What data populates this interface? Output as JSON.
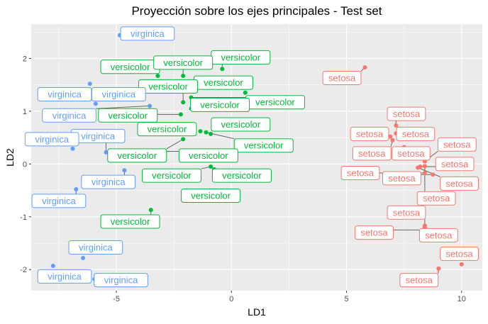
{
  "chart_data": {
    "type": "scatter",
    "title": "Proyección sobre los ejes principales - Test set",
    "xlabel": "LD1",
    "ylabel": "LD2",
    "xlim": [
      -8.7,
      10.9
    ],
    "ylim": [
      -2.4,
      2.65
    ],
    "xticks": [
      -5,
      0,
      5,
      10
    ],
    "yticks": [
      -2,
      -1,
      0,
      1,
      2
    ],
    "grid": true,
    "background": "#EBEBEB",
    "series": [
      {
        "name": "setosa",
        "color": "#F8766D",
        "points": [
          {
            "x": 5.8,
            "y": 1.83,
            "label": "setosa",
            "lx": 4.8,
            "ly": 1.63
          },
          {
            "x": 7.15,
            "y": 0.73,
            "label": "setosa",
            "lx": 7.6,
            "ly": 0.95
          },
          {
            "x": 7.15,
            "y": 0.58,
            "label": "setosa",
            "lx": 8.0,
            "ly": 0.57
          },
          {
            "x": 6.9,
            "y": 0.52,
            "label": "setosa",
            "lx": 6.0,
            "ly": 0.57
          },
          {
            "x": 7.0,
            "y": 0.45,
            "label": "setosa",
            "lx": 6.1,
            "ly": 0.2
          },
          {
            "x": 7.5,
            "y": 0.32,
            "label": "setosa",
            "lx": 7.8,
            "ly": 0.2
          },
          {
            "x": 8.4,
            "y": 0.05,
            "label": "setosa",
            "lx": 9.8,
            "ly": 0.37
          },
          {
            "x": 8.2,
            "y": -0.05,
            "label": "setosa",
            "lx": 9.7,
            "ly": 0.0
          },
          {
            "x": 8.4,
            "y": -0.17,
            "label": "setosa",
            "lx": 5.6,
            "ly": -0.17
          },
          {
            "x": 8.75,
            "y": -0.2,
            "label": "setosa",
            "lx": 7.4,
            "ly": -0.27
          },
          {
            "x": 8.1,
            "y": -0.07,
            "label": "setosa",
            "lx": 9.9,
            "ly": -0.37
          },
          {
            "x": 8.4,
            "y": -0.04,
            "label": "setosa",
            "lx": 8.9,
            "ly": -0.65
          },
          {
            "x": 8.4,
            "y": -1.17,
            "label": "setosa",
            "lx": 7.6,
            "ly": -0.92
          },
          {
            "x": 8.5,
            "y": -1.25,
            "label": "setosa",
            "lx": 6.2,
            "ly": -1.3
          },
          {
            "x": 8.4,
            "y": -1.2,
            "label": "setosa",
            "lx": 9.0,
            "ly": -1.35
          },
          {
            "x": 10.0,
            "y": -1.9,
            "label": "setosa",
            "lx": 9.9,
            "ly": -1.7
          },
          {
            "x": 9.0,
            "y": -1.98,
            "label": "setosa",
            "lx": 8.15,
            "ly": -2.2
          }
        ]
      },
      {
        "name": "versicolor",
        "color": "#00BA38",
        "points": [
          {
            "x": -0.4,
            "y": 1.8,
            "label": "versicolor",
            "lx": 0.4,
            "ly": 2.02
          },
          {
            "x": -3.2,
            "y": 1.67,
            "label": "versicolor",
            "lx": -4.4,
            "ly": 1.84
          },
          {
            "x": -2.1,
            "y": 1.67,
            "label": "versicolor",
            "lx": -2.1,
            "ly": 1.92
          },
          {
            "x": 0.6,
            "y": 1.35,
            "label": "versicolor",
            "lx": -0.35,
            "ly": 1.54
          },
          {
            "x": -2.1,
            "y": 1.17,
            "label": "versicolor",
            "lx": -2.75,
            "ly": 1.47
          },
          {
            "x": -1.75,
            "y": 1.26,
            "label": "versicolor",
            "lx": 1.9,
            "ly": 1.17
          },
          {
            "x": -1.75,
            "y": 1.05,
            "label": "versicolor",
            "lx": -0.5,
            "ly": 1.12
          },
          {
            "x": -2.2,
            "y": 0.94,
            "label": "versicolor",
            "lx": -4.5,
            "ly": 0.92
          },
          {
            "x": -1.35,
            "y": 0.62,
            "label": "versicolor",
            "lx": -2.8,
            "ly": 0.66
          },
          {
            "x": -0.9,
            "y": 0.57,
            "label": "versicolor",
            "lx": 0.4,
            "ly": 0.75
          },
          {
            "x": -1.1,
            "y": 0.6,
            "label": "versicolor",
            "lx": 1.4,
            "ly": 0.35
          },
          {
            "x": -2.1,
            "y": 0.47,
            "label": "versicolor",
            "lx": -4.1,
            "ly": 0.16
          },
          {
            "x": -2.9,
            "y": 0.24,
            "label": "versicolor",
            "lx": -1.0,
            "ly": 0.16
          },
          {
            "x": -0.9,
            "y": -0.05,
            "label": "versicolor",
            "lx": -2.6,
            "ly": -0.22
          },
          {
            "x": -0.75,
            "y": -0.1,
            "label": "versicolor",
            "lx": 0.45,
            "ly": -0.22
          },
          {
            "x": -2.1,
            "y": -0.68,
            "label": "versicolor",
            "lx": -0.9,
            "ly": -0.6
          },
          {
            "x": -3.5,
            "y": -0.87,
            "label": "versicolor",
            "lx": -4.4,
            "ly": -1.09
          }
        ]
      },
      {
        "name": "virginica",
        "color": "#619CFF",
        "points": [
          {
            "x": -4.85,
            "y": 2.44,
            "label": "virginica",
            "lx": -3.65,
            "ly": 2.47
          },
          {
            "x": -6.15,
            "y": 1.52,
            "label": "virginica",
            "lx": -7.25,
            "ly": 1.32
          },
          {
            "x": -5.9,
            "y": 1.14,
            "label": "virginica",
            "lx": -4.9,
            "ly": 1.32
          },
          {
            "x": -3.55,
            "y": 1.1,
            "label": "virginica",
            "lx": -7.05,
            "ly": 0.92
          },
          {
            "x": -5.45,
            "y": 0.22,
            "label": "virginica",
            "lx": -5.8,
            "ly": 0.53
          },
          {
            "x": -6.9,
            "y": 0.29,
            "label": "virginica",
            "lx": -7.8,
            "ly": 0.47
          },
          {
            "x": -4.65,
            "y": -0.12,
            "label": "virginica",
            "lx": -5.35,
            "ly": -0.34
          },
          {
            "x": -6.75,
            "y": -0.48,
            "label": "virginica",
            "lx": -7.5,
            "ly": -0.7
          },
          {
            "x": -6.45,
            "y": -1.78,
            "label": "virginica",
            "lx": -5.9,
            "ly": -1.58
          },
          {
            "x": -7.75,
            "y": -1.93,
            "label": "virginica",
            "lx": -7.25,
            "ly": -2.13
          },
          {
            "x": -5.95,
            "y": -2.18,
            "label": "virginica",
            "lx": -4.8,
            "ly": -2.2
          }
        ]
      }
    ]
  }
}
